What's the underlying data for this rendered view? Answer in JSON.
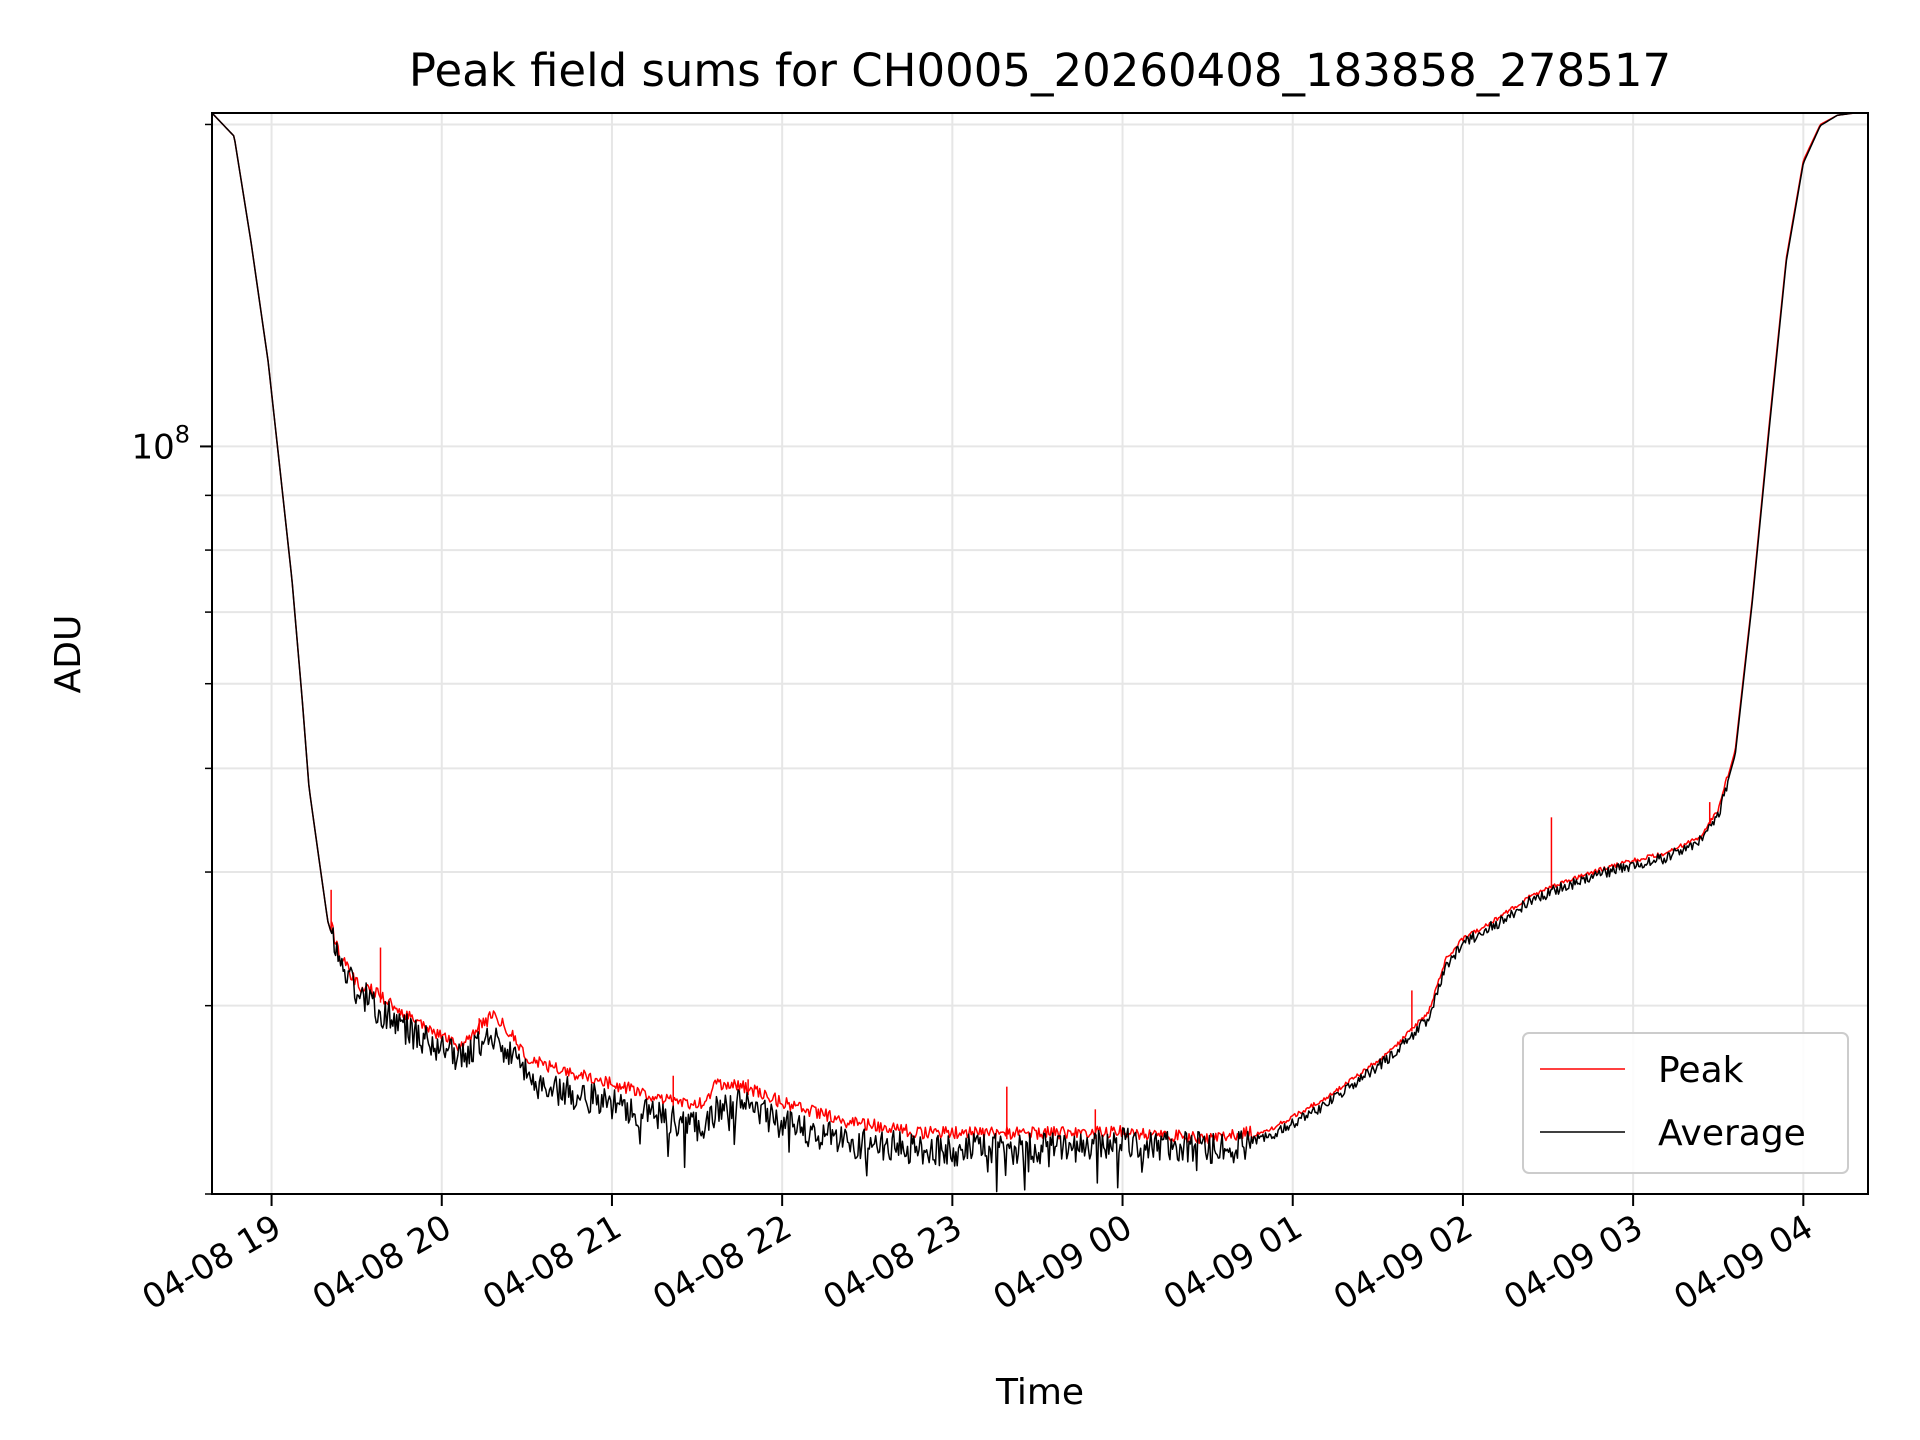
{
  "chart_data": {
    "type": "line",
    "title": "Peak field sums for CH0005_20260408_183858_278517",
    "xlabel": "Time",
    "ylabel": "ADU",
    "yscale": "log",
    "ylim": [
      20000000,
      205000000
    ],
    "y_major_ticks": [
      {
        "value": 100000000,
        "base": "10",
        "exp": "8"
      }
    ],
    "y_minor_ticks": [
      20000000,
      30000000,
      40000000,
      50000000,
      60000000,
      70000000,
      80000000,
      90000000,
      200000000
    ],
    "xlim_hours": [
      18.65,
      28.38
    ],
    "x_ticks": [
      {
        "hour": 19,
        "label": "04-08 19"
      },
      {
        "hour": 20,
        "label": "04-08 20"
      },
      {
        "hour": 21,
        "label": "04-08 21"
      },
      {
        "hour": 22,
        "label": "04-08 22"
      },
      {
        "hour": 23,
        "label": "04-08 23"
      },
      {
        "hour": 24,
        "label": "04-09 00"
      },
      {
        "hour": 25,
        "label": "04-09 01"
      },
      {
        "hour": 26,
        "label": "04-09 02"
      },
      {
        "hour": 27,
        "label": "04-09 03"
      },
      {
        "hour": 28,
        "label": "04-09 04"
      }
    ],
    "grid": true,
    "legend_position": "bottom-right",
    "series": [
      {
        "name": "Peak",
        "color": "#ff0000",
        "x_hours": [
          18.65,
          18.78,
          18.88,
          18.98,
          19.05,
          19.12,
          19.18,
          19.22,
          19.28,
          19.33,
          19.4,
          19.5,
          19.6,
          19.8,
          19.95,
          20.05,
          20.1,
          20.2,
          20.3,
          20.4,
          20.5,
          20.6,
          20.8,
          21.0,
          21.2,
          21.4,
          21.55,
          21.6,
          21.7,
          21.9,
          22.0,
          22.2,
          22.4,
          22.6,
          22.8,
          23.0,
          23.2,
          23.4,
          23.6,
          23.8,
          24.0,
          24.2,
          24.4,
          24.6,
          24.7,
          24.85,
          25.0,
          25.2,
          25.4,
          25.6,
          25.8,
          25.9,
          26.0,
          26.2,
          26.4,
          26.6,
          26.8,
          27.0,
          27.2,
          27.4,
          27.5,
          27.6,
          27.7,
          27.8,
          27.9,
          28.0,
          28.1,
          28.2,
          28.3,
          28.38
        ],
        "y": [
          205000000,
          195000000,
          155000000,
          120000000,
          95000000,
          75000000,
          58000000,
          48000000,
          41000000,
          36000000,
          33000000,
          31000000,
          30500000,
          29000000,
          28000000,
          27500000,
          27000000,
          28000000,
          29000000,
          28000000,
          26500000,
          26000000,
          25500000,
          25000000,
          24500000,
          24000000,
          24000000,
          25000000,
          25000000,
          24500000,
          24000000,
          23500000,
          23000000,
          22800000,
          22500000,
          22500000,
          22500000,
          22500000,
          22500000,
          22500000,
          22600000,
          22400000,
          22300000,
          22300000,
          22400000,
          22800000,
          23500000,
          24500000,
          25800000,
          27300000,
          29500000,
          33000000,
          34500000,
          36000000,
          37800000,
          39000000,
          40000000,
          40800000,
          41500000,
          43000000,
          45500000,
          52000000,
          72000000,
          105000000,
          150000000,
          185000000,
          200000000,
          204000000,
          205000000,
          205000000
        ],
        "spikes": [
          {
            "hour": 19.35,
            "value": 38500000
          },
          {
            "hour": 19.64,
            "value": 34000000
          },
          {
            "hour": 20.22,
            "value": 29200000
          },
          {
            "hour": 21.36,
            "value": 25800000
          },
          {
            "hour": 21.8,
            "value": 25600000
          },
          {
            "hour": 23.32,
            "value": 25200000
          },
          {
            "hour": 23.84,
            "value": 24000000
          },
          {
            "hour": 25.7,
            "value": 31000000
          },
          {
            "hour": 26.52,
            "value": 45000000
          },
          {
            "hour": 27.45,
            "value": 46500000
          }
        ]
      },
      {
        "name": "Average",
        "color": "#000000",
        "x_hours": [
          18.65,
          18.78,
          18.88,
          18.98,
          19.05,
          19.12,
          19.18,
          19.22,
          19.28,
          19.33,
          19.4,
          19.5,
          19.6,
          19.8,
          19.95,
          20.05,
          20.1,
          20.2,
          20.3,
          20.4,
          20.5,
          20.6,
          20.8,
          21.0,
          21.2,
          21.4,
          21.55,
          21.6,
          21.7,
          21.9,
          22.0,
          22.2,
          22.4,
          22.6,
          22.8,
          23.0,
          23.2,
          23.4,
          23.6,
          23.8,
          24.0,
          24.2,
          24.4,
          24.6,
          24.7,
          24.85,
          25.0,
          25.2,
          25.4,
          25.6,
          25.8,
          25.9,
          26.0,
          26.2,
          26.4,
          26.6,
          26.8,
          27.0,
          27.2,
          27.4,
          27.5,
          27.6,
          27.7,
          27.8,
          27.9,
          28.0,
          28.1,
          28.2,
          28.3,
          28.38
        ],
        "y": [
          205000000,
          195000000,
          155000000,
          120000000,
          95000000,
          75000000,
          58000000,
          48000000,
          41000000,
          36000000,
          33000000,
          31000000,
          30000000,
          28500000,
          27500000,
          27000000,
          26800000,
          27500000,
          28300000,
          27000000,
          25800000,
          25200000,
          24800000,
          24300000,
          23800000,
          23300000,
          23200000,
          24200000,
          24300000,
          23800000,
          23200000,
          22800000,
          22400000,
          22200000,
          22000000,
          22000000,
          22000000,
          22100000,
          22100000,
          22200000,
          22300000,
          22200000,
          22100000,
          22100000,
          22200000,
          22600000,
          23300000,
          24300000,
          25600000,
          27100000,
          29200000,
          32700000,
          34300000,
          35800000,
          37600000,
          38800000,
          39800000,
          40600000,
          41300000,
          42800000,
          45200000,
          51500000,
          71500000,
          104000000,
          149000000,
          184000000,
          199500000,
          204000000,
          205000000,
          205000000
        ]
      }
    ]
  }
}
